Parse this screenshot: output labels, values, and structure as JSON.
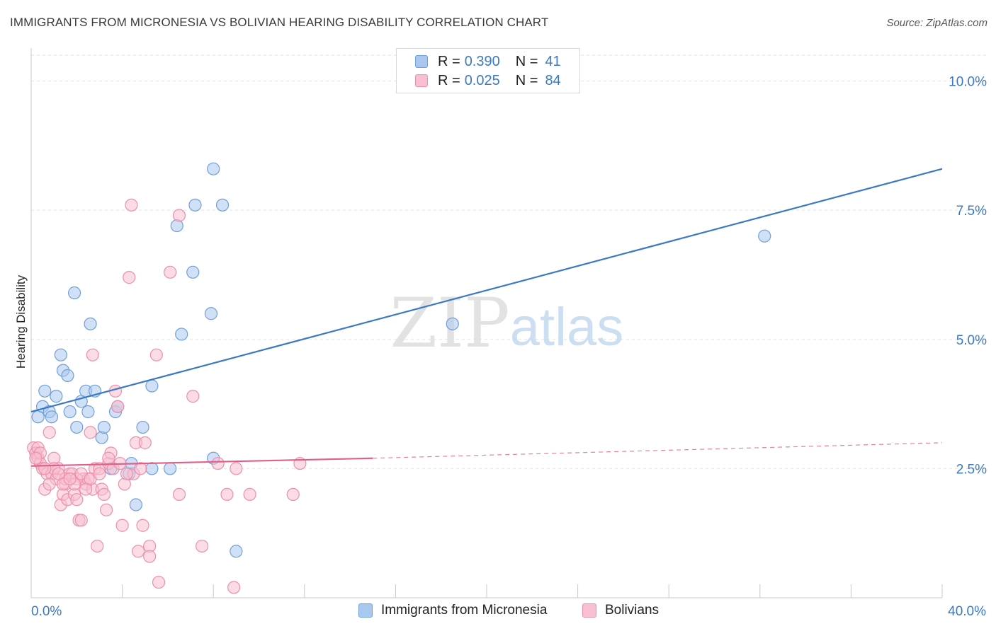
{
  "header": {
    "title": "IMMIGRANTS FROM MICRONESIA VS BOLIVIAN HEARING DISABILITY CORRELATION CHART",
    "source": "Source: ZipAtlas.com"
  },
  "watermark": {
    "zip": "ZIP",
    "atlas": "atlas"
  },
  "legend": {
    "rows": [
      {
        "r_label": "R =",
        "r_value": "0.390",
        "n_label": "N =",
        "n_value": "41",
        "color": "#a9c8f0",
        "stroke": "#6f9fd8"
      },
      {
        "r_label": "R =",
        "r_value": "0.025",
        "n_label": "N =",
        "n_value": "84",
        "color": "#f7bfd0",
        "stroke": "#ec8fac"
      }
    ]
  },
  "bottom_legend": {
    "items": [
      {
        "label": "Immigrants from Micronesia",
        "color": "#a9c8f0",
        "stroke": "#6f9fd8"
      },
      {
        "label": "Bolivians",
        "color": "#f7bfd0",
        "stroke": "#ec8fac"
      }
    ]
  },
  "chart_data": {
    "type": "scatter",
    "title": "IMMIGRANTS FROM MICRONESIA VS BOLIVIAN HEARING DISABILITY CORRELATION CHART",
    "xlabel": "",
    "ylabel": "Hearing Disability",
    "xlim": [
      0,
      40
    ],
    "ylim": [
      0,
      10.5
    ],
    "x_tick_labels": [
      "0.0%",
      "40.0%"
    ],
    "y_ticks": [
      2.5,
      5.0,
      7.5,
      10.0
    ],
    "y_tick_labels": [
      "2.5%",
      "5.0%",
      "7.5%",
      "10.0%"
    ],
    "grid": true,
    "legend_position": "top-center",
    "series": [
      {
        "name": "Immigrants from Micronesia",
        "color": "#3b79c4",
        "fill": "#a9c8f0",
        "trend": {
          "x": [
            0,
            40
          ],
          "y": [
            3.6,
            8.3
          ],
          "style": "solid"
        },
        "points": [
          [
            0.3,
            3.5
          ],
          [
            0.5,
            3.7
          ],
          [
            0.6,
            4.0
          ],
          [
            0.8,
            3.6
          ],
          [
            0.9,
            3.5
          ],
          [
            1.1,
            3.9
          ],
          [
            1.3,
            4.7
          ],
          [
            1.4,
            4.4
          ],
          [
            1.6,
            4.3
          ],
          [
            1.7,
            3.6
          ],
          [
            1.9,
            5.9
          ],
          [
            2.0,
            3.3
          ],
          [
            2.2,
            3.8
          ],
          [
            2.4,
            4.0
          ],
          [
            2.5,
            3.6
          ],
          [
            2.6,
            5.3
          ],
          [
            2.8,
            4.0
          ],
          [
            3.1,
            3.1
          ],
          [
            3.2,
            3.3
          ],
          [
            3.5,
            2.5
          ],
          [
            3.7,
            3.6
          ],
          [
            3.8,
            3.7
          ],
          [
            4.3,
            2.4
          ],
          [
            4.4,
            2.6
          ],
          [
            4.6,
            1.8
          ],
          [
            4.9,
            3.3
          ],
          [
            5.3,
            4.1
          ],
          [
            5.3,
            2.5
          ],
          [
            6.1,
            2.5
          ],
          [
            6.6,
            5.1
          ],
          [
            6.4,
            7.2
          ],
          [
            7.1,
            6.3
          ],
          [
            7.2,
            7.6
          ],
          [
            7.9,
            5.5
          ],
          [
            8.0,
            8.3
          ],
          [
            8.4,
            7.6
          ],
          [
            8.0,
            2.7
          ],
          [
            9.0,
            0.9
          ],
          [
            18.5,
            5.3
          ],
          [
            32.2,
            7.0
          ],
          [
            0.2,
            2.8
          ]
        ]
      },
      {
        "name": "Bolivians",
        "color": "#e0608a",
        "fill": "#f7bfd0",
        "trend": {
          "x": [
            0,
            15
          ],
          "y": [
            2.55,
            2.7
          ],
          "style": "solid"
        },
        "trend_ext": {
          "x": [
            15,
            40
          ],
          "y": [
            2.7,
            3.0
          ],
          "style": "dashed"
        },
        "points": [
          [
            0.1,
            2.9
          ],
          [
            0.2,
            2.8
          ],
          [
            0.3,
            2.7
          ],
          [
            0.3,
            2.9
          ],
          [
            0.4,
            2.6
          ],
          [
            0.5,
            2.5
          ],
          [
            0.6,
            2.1
          ],
          [
            0.7,
            2.4
          ],
          [
            0.8,
            3.2
          ],
          [
            0.9,
            2.4
          ],
          [
            1.0,
            2.7
          ],
          [
            1.1,
            2.3
          ],
          [
            1.2,
            2.5
          ],
          [
            1.3,
            1.8
          ],
          [
            1.4,
            2.0
          ],
          [
            1.5,
            2.2
          ],
          [
            1.6,
            1.9
          ],
          [
            1.7,
            2.4
          ],
          [
            1.8,
            2.4
          ],
          [
            1.9,
            2.0
          ],
          [
            2.0,
            1.9
          ],
          [
            2.1,
            1.5
          ],
          [
            2.2,
            1.5
          ],
          [
            2.3,
            2.3
          ],
          [
            2.4,
            2.2
          ],
          [
            2.5,
            2.3
          ],
          [
            2.6,
            3.2
          ],
          [
            2.7,
            2.1
          ],
          [
            2.8,
            2.5
          ],
          [
            2.9,
            1.0
          ],
          [
            3.0,
            2.5
          ],
          [
            3.1,
            2.1
          ],
          [
            3.2,
            2.0
          ],
          [
            3.3,
            1.7
          ],
          [
            3.4,
            2.6
          ],
          [
            3.5,
            2.8
          ],
          [
            3.6,
            2.5
          ],
          [
            3.7,
            4.0
          ],
          [
            3.8,
            3.7
          ],
          [
            3.9,
            2.6
          ],
          [
            4.0,
            1.4
          ],
          [
            4.1,
            2.2
          ],
          [
            4.3,
            6.2
          ],
          [
            4.4,
            7.6
          ],
          [
            4.5,
            2.4
          ],
          [
            4.6,
            3.0
          ],
          [
            4.7,
            0.9
          ],
          [
            4.8,
            2.5
          ],
          [
            4.9,
            1.4
          ],
          [
            5.0,
            3.0
          ],
          [
            5.2,
            1.0
          ],
          [
            5.2,
            0.8
          ],
          [
            5.5,
            4.7
          ],
          [
            5.6,
            0.3
          ],
          [
            6.1,
            6.3
          ],
          [
            6.5,
            2.0
          ],
          [
            6.5,
            7.4
          ],
          [
            7.1,
            3.9
          ],
          [
            7.5,
            1.0
          ],
          [
            8.2,
            2.6
          ],
          [
            8.6,
            2.0
          ],
          [
            8.9,
            0.2
          ],
          [
            9.0,
            2.5
          ],
          [
            9.6,
            2.0
          ],
          [
            11.5,
            2.0
          ],
          [
            11.8,
            2.6
          ],
          [
            2.7,
            4.7
          ],
          [
            1.0,
            2.5
          ],
          [
            1.5,
            2.3
          ],
          [
            2.0,
            2.3
          ],
          [
            0.6,
            2.5
          ],
          [
            1.2,
            2.4
          ],
          [
            2.2,
            2.4
          ],
          [
            3.4,
            2.7
          ],
          [
            4.2,
            2.4
          ],
          [
            0.8,
            2.2
          ],
          [
            1.9,
            2.2
          ],
          [
            0.4,
            2.8
          ],
          [
            2.6,
            2.3
          ],
          [
            1.4,
            2.2
          ],
          [
            3.0,
            2.4
          ],
          [
            0.2,
            2.7
          ],
          [
            1.7,
            2.3
          ],
          [
            2.4,
            2.1
          ]
        ]
      }
    ]
  }
}
